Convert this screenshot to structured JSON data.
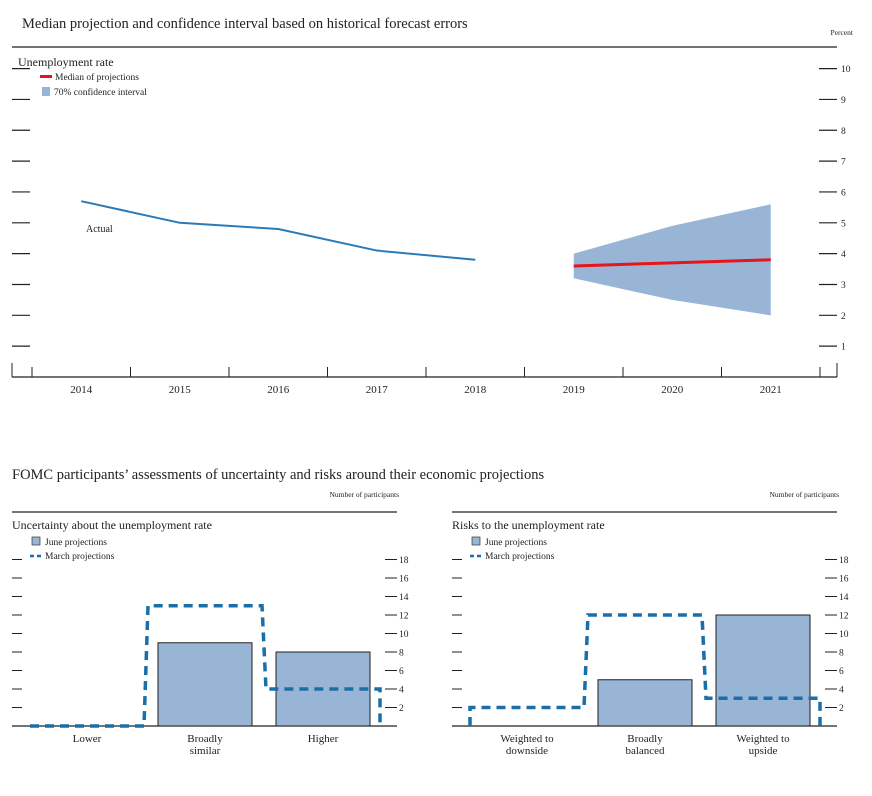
{
  "chart_data": [
    {
      "type": "line",
      "title": "Median projection and confidence interval based on historical forecast errors",
      "subtitle": "Unemployment rate",
      "unit_label": "Percent",
      "ylim": [
        0,
        10.7
      ],
      "yticks": [
        1,
        2,
        3,
        4,
        5,
        6,
        7,
        8,
        9,
        10
      ],
      "x": [
        "2014",
        "2015",
        "2016",
        "2017",
        "2018",
        "2019",
        "2020",
        "2021"
      ],
      "legend": {
        "placement": "top-left",
        "entries": [
          "Median of projections",
          "70% confidence interval"
        ]
      },
      "series": [
        {
          "name": "Actual",
          "color": "#2a7ab8",
          "x": [
            "2014",
            "2015",
            "2016",
            "2017",
            "2018"
          ],
          "values": [
            5.7,
            5.0,
            4.8,
            4.1,
            3.8
          ]
        },
        {
          "name": "Median of projections",
          "color": "#e8141c",
          "x": [
            "2019",
            "2020",
            "2021"
          ],
          "values": [
            3.6,
            3.7,
            3.8
          ]
        }
      ],
      "band": {
        "name": "70% confidence interval",
        "color": "#98b5d6",
        "x": [
          "2019",
          "2020",
          "2021"
        ],
        "lower": [
          3.2,
          2.5,
          2.0
        ],
        "upper": [
          4.0,
          4.9,
          5.6
        ]
      },
      "annotation": "Actual"
    },
    {
      "type": "bar",
      "group_title": "FOMC participants’ assessments of uncertainty and risks around their economic projections",
      "title": "Uncertainty about the unemployment rate",
      "unit_label": "Number of participants",
      "categories": [
        "Lower",
        "Broadly\nsimilar",
        "Higher"
      ],
      "ylim": [
        0,
        19
      ],
      "yticks": [
        2,
        4,
        6,
        8,
        10,
        12,
        14,
        16,
        18
      ],
      "legend": {
        "placement": "top-left"
      },
      "series": [
        {
          "name": "June projections",
          "style": "bar",
          "color": "#98b5d6",
          "values": [
            0,
            9,
            8
          ]
        },
        {
          "name": "March projections",
          "style": "dashed-step",
          "color": "#1a6fa8",
          "values": [
            0,
            13,
            4
          ]
        }
      ]
    },
    {
      "type": "bar",
      "title": "Risks to the unemployment rate",
      "unit_label": "Number of participants",
      "categories": [
        "Weighted to\ndownside",
        "Broadly\nbalanced",
        "Weighted to\nupside"
      ],
      "ylim": [
        0,
        19
      ],
      "yticks": [
        2,
        4,
        6,
        8,
        10,
        12,
        14,
        16,
        18
      ],
      "legend": {
        "placement": "top-left"
      },
      "series": [
        {
          "name": "June projections",
          "style": "bar",
          "color": "#98b5d6",
          "values": [
            0,
            5,
            12
          ]
        },
        {
          "name": "March projections",
          "style": "dashed-step",
          "color": "#1a6fa8",
          "values": [
            2,
            12,
            3
          ]
        }
      ]
    }
  ]
}
